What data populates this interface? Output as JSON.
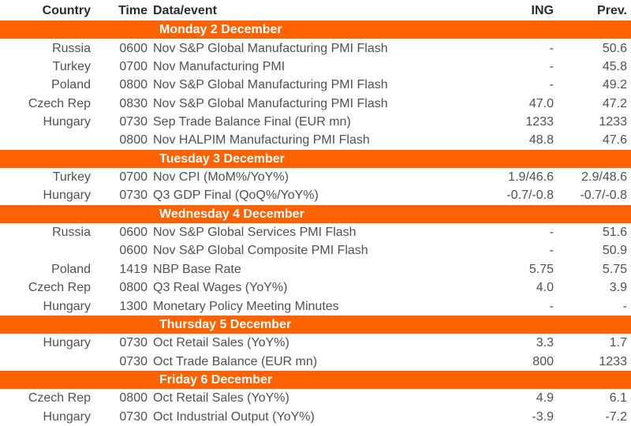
{
  "colors": {
    "accent_orange": "#FF6200",
    "band_text": "#FFFFFF",
    "header_text": "#2B2B2E",
    "body_text": "#515155"
  },
  "table": {
    "columns": {
      "country": "Country",
      "time": "Time",
      "event": "Data/event",
      "ing": "ING",
      "prev": "Prev."
    },
    "sections": [
      {
        "day": "Monday 2 December",
        "rows": [
          {
            "country": "Russia",
            "time": "0600",
            "event": "Nov S&P Global Manufacturing PMI Flash",
            "ing": "-",
            "prev": "50.6"
          },
          {
            "country": "Turkey",
            "time": "0700",
            "event": "Nov Manufacturing PMI",
            "ing": "-",
            "prev": "45.8"
          },
          {
            "country": "Poland",
            "time": "0800",
            "event": "Nov S&P Global Manufacturing PMI Flash",
            "ing": "-",
            "prev": "49.2"
          },
          {
            "country": "Czech Rep",
            "time": "0830",
            "event": "Nov S&P Global Manufacturing PMI Flash",
            "ing": "47.0",
            "prev": "47.2"
          },
          {
            "country": "Hungary",
            "time": "0730",
            "event": "Sep Trade Balance Final (EUR mn)",
            "ing": "1233",
            "prev": "1233"
          },
          {
            "country": "",
            "time": "0800",
            "event": "Nov HALPIM Manufacturing PMI Flash",
            "ing": "48.8",
            "prev": "47.6"
          }
        ]
      },
      {
        "day": "Tuesday 3 December",
        "rows": [
          {
            "country": "Turkey",
            "time": "0700",
            "event": "Nov CPI (MoM%/YoY%)",
            "ing": "1.9/46.6",
            "prev": "2.9/48.6"
          },
          {
            "country": "Hungary",
            "time": "0730",
            "event": "Q3 GDP Final (QoQ%/YoY%)",
            "ing": "-0.7/-0.8",
            "prev": "-0.7/-0.8"
          }
        ]
      },
      {
        "day": "Wednesday 4 December",
        "rows": [
          {
            "country": "Russia",
            "time": "0600",
            "event": "Nov S&P Global Services PMI Flash",
            "ing": "-",
            "prev": "51.6"
          },
          {
            "country": "",
            "time": "0600",
            "event": "Nov S&P Global Composite PMI Flash",
            "ing": "-",
            "prev": "50.9"
          },
          {
            "country": "Poland",
            "time": "1419",
            "event": "NBP Base Rate",
            "ing": "5.75",
            "prev": "5.75"
          },
          {
            "country": "Czech Rep",
            "time": "0800",
            "event": "Q3 Real Wages (YoY%)",
            "ing": "4.0",
            "prev": "3.9"
          },
          {
            "country": "Hungary",
            "time": "1300",
            "event": "Monetary Policy Meeting Minutes",
            "ing": "-",
            "prev": "-"
          }
        ]
      },
      {
        "day": "Thursday 5 December",
        "rows": [
          {
            "country": "Hungary",
            "time": "0730",
            "event": "Oct Retail Sales (YoY%)",
            "ing": "3.3",
            "prev": "1.7"
          },
          {
            "country": "",
            "time": "0730",
            "event": "Oct Trade Balance (EUR mn)",
            "ing": "800",
            "prev": "1233"
          }
        ]
      },
      {
        "day": "Friday 6 December",
        "rows": [
          {
            "country": "Czech Rep",
            "time": "0800",
            "event": "Oct Retail Sales (YoY%)",
            "ing": "4.9",
            "prev": "6.1"
          },
          {
            "country": "Hungary",
            "time": "0730",
            "event": "Oct Industrial Output (YoY%)",
            "ing": "-3.9",
            "prev": "-7.2"
          }
        ]
      }
    ]
  }
}
